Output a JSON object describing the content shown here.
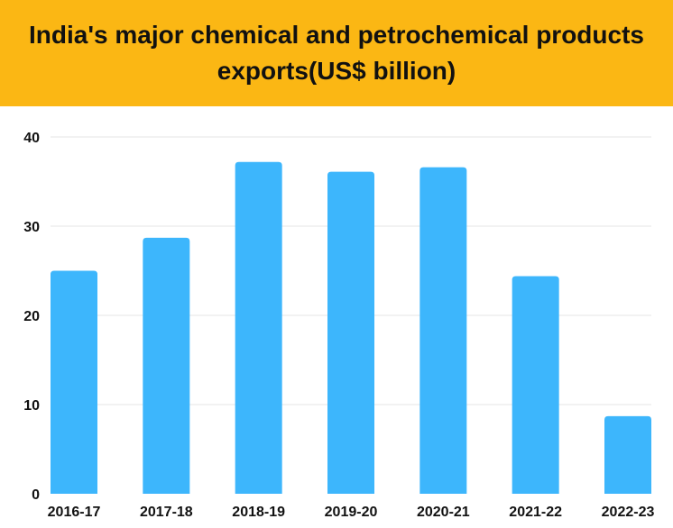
{
  "header": {
    "title": "India's major chemical and petrochemical products exports(US$ billion)"
  },
  "colors": {
    "header_bg": "#FBB714",
    "bar": "#3DB6FC",
    "grid": "#E6E6E6",
    "text": "#111111"
  },
  "chart_data": {
    "type": "bar",
    "categories": [
      "2016-17",
      "2017-18",
      "2018-19",
      "2019-20",
      "2020-21",
      "2021-22",
      "2022-23"
    ],
    "values": [
      25.0,
      28.7,
      37.2,
      36.1,
      36.6,
      24.4,
      8.7
    ],
    "title": "India's major chemical and petrochemical products exports(US$ billion)",
    "ylim": [
      0,
      40
    ],
    "yticks": [
      0,
      10,
      20,
      30,
      40
    ],
    "grid": true,
    "legend": "none"
  }
}
